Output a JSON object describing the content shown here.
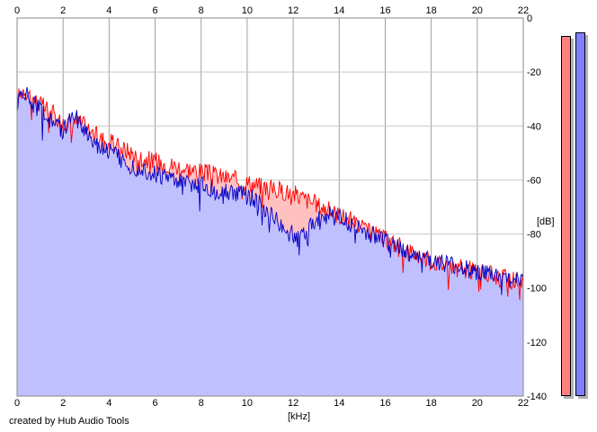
{
  "footer": {
    "credit": "created by Hub Audio Tools"
  },
  "chart_data": {
    "type": "area",
    "x_unit": "[kHz]",
    "y_unit": "[dB]",
    "x_ticks": [
      "0",
      "2",
      "4",
      "6",
      "8",
      "10",
      "12",
      "14",
      "16",
      "18",
      "20",
      "22"
    ],
    "y_ticks": [
      "0",
      "-20",
      "-40",
      "-60",
      "-80",
      "-100",
      "-120",
      "-140"
    ],
    "xlim": [
      0,
      22
    ],
    "ylim": [
      -140,
      0
    ],
    "grid": true,
    "series": [
      {
        "color": "#ff0000",
        "fill": "#ffc0c0",
        "x": [
          0,
          0.3,
          0.6,
          1,
          1.5,
          2,
          2.5,
          3,
          3.5,
          4,
          4.5,
          5,
          5.5,
          6,
          6.5,
          7,
          7.5,
          8,
          8.5,
          9,
          9.5,
          10,
          10.5,
          11,
          11.5,
          12,
          12.5,
          13,
          13.5,
          14,
          14.5,
          15,
          15.5,
          16,
          16.5,
          17,
          17.5,
          18,
          18.5,
          19,
          19.5,
          20,
          20.5,
          21,
          21.5,
          22
        ],
        "values": [
          -30,
          -26,
          -29,
          -32,
          -35,
          -39,
          -38,
          -40,
          -44,
          -46,
          -48,
          -50,
          -52,
          -53,
          -54,
          -55,
          -56,
          -57,
          -58,
          -59,
          -60,
          -61,
          -62,
          -63,
          -64,
          -65,
          -67,
          -69,
          -71,
          -73,
          -75,
          -78,
          -80,
          -82,
          -84,
          -86,
          -88,
          -90,
          -91,
          -92,
          -93,
          -94,
          -95,
          -96,
          -97,
          -98
        ]
      },
      {
        "color": "#0000c8",
        "fill": "#c0c0ff",
        "x": [
          0,
          0.3,
          0.6,
          1,
          1.5,
          2,
          2.5,
          3,
          3.5,
          4,
          4.5,
          5,
          5.5,
          6,
          6.5,
          7,
          7.5,
          8,
          8.5,
          9,
          9.5,
          10,
          10.5,
          11,
          11.5,
          12,
          12.5,
          13,
          13.5,
          14,
          14.5,
          15,
          15.5,
          16,
          16.5,
          17,
          17.5,
          18,
          18.5,
          19,
          19.5,
          20,
          20.5,
          21,
          21.5,
          22
        ],
        "values": [
          -32,
          -27,
          -31,
          -34,
          -38,
          -42,
          -36,
          -42,
          -47,
          -49,
          -52,
          -55,
          -56,
          -58,
          -59,
          -60,
          -61,
          -62,
          -63,
          -64,
          -65,
          -66,
          -68,
          -72,
          -78,
          -80,
          -79,
          -74,
          -73,
          -74,
          -76,
          -79,
          -81,
          -83,
          -85,
          -87,
          -88,
          -90,
          -91,
          -92,
          -93,
          -94,
          -95,
          -96,
          -97,
          -98
        ]
      }
    ]
  },
  "meters": [
    {
      "color": "#ff8080",
      "level_db": -7
    },
    {
      "color": "#8080ff",
      "level_db": -6
    }
  ]
}
